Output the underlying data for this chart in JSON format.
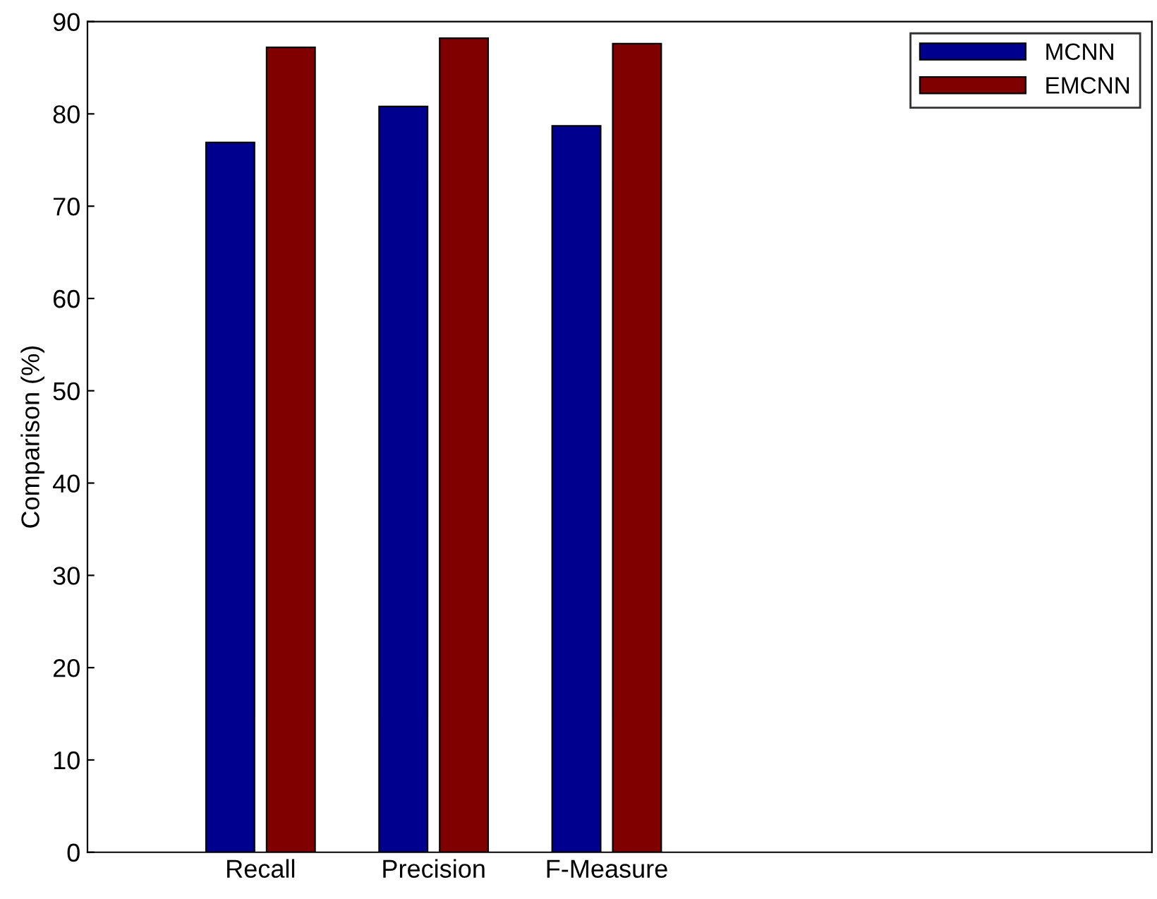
{
  "chart_data": {
    "type": "bar",
    "ylabel": "Comparison (%)",
    "categories": [
      "Recall",
      "Precision",
      "F-Measure"
    ],
    "series": [
      {
        "name": "MCNN",
        "color": "#00008f",
        "values": [
          76.9,
          80.8,
          78.7
        ]
      },
      {
        "name": "EMCNN",
        "color": "#800000",
        "values": [
          87.2,
          88.2,
          87.6
        ]
      }
    ],
    "ylim": [
      0,
      90
    ],
    "yticks": [
      0,
      10,
      20,
      30,
      40,
      50,
      60,
      70,
      80,
      90
    ],
    "grid": false,
    "legend": "top right"
  }
}
